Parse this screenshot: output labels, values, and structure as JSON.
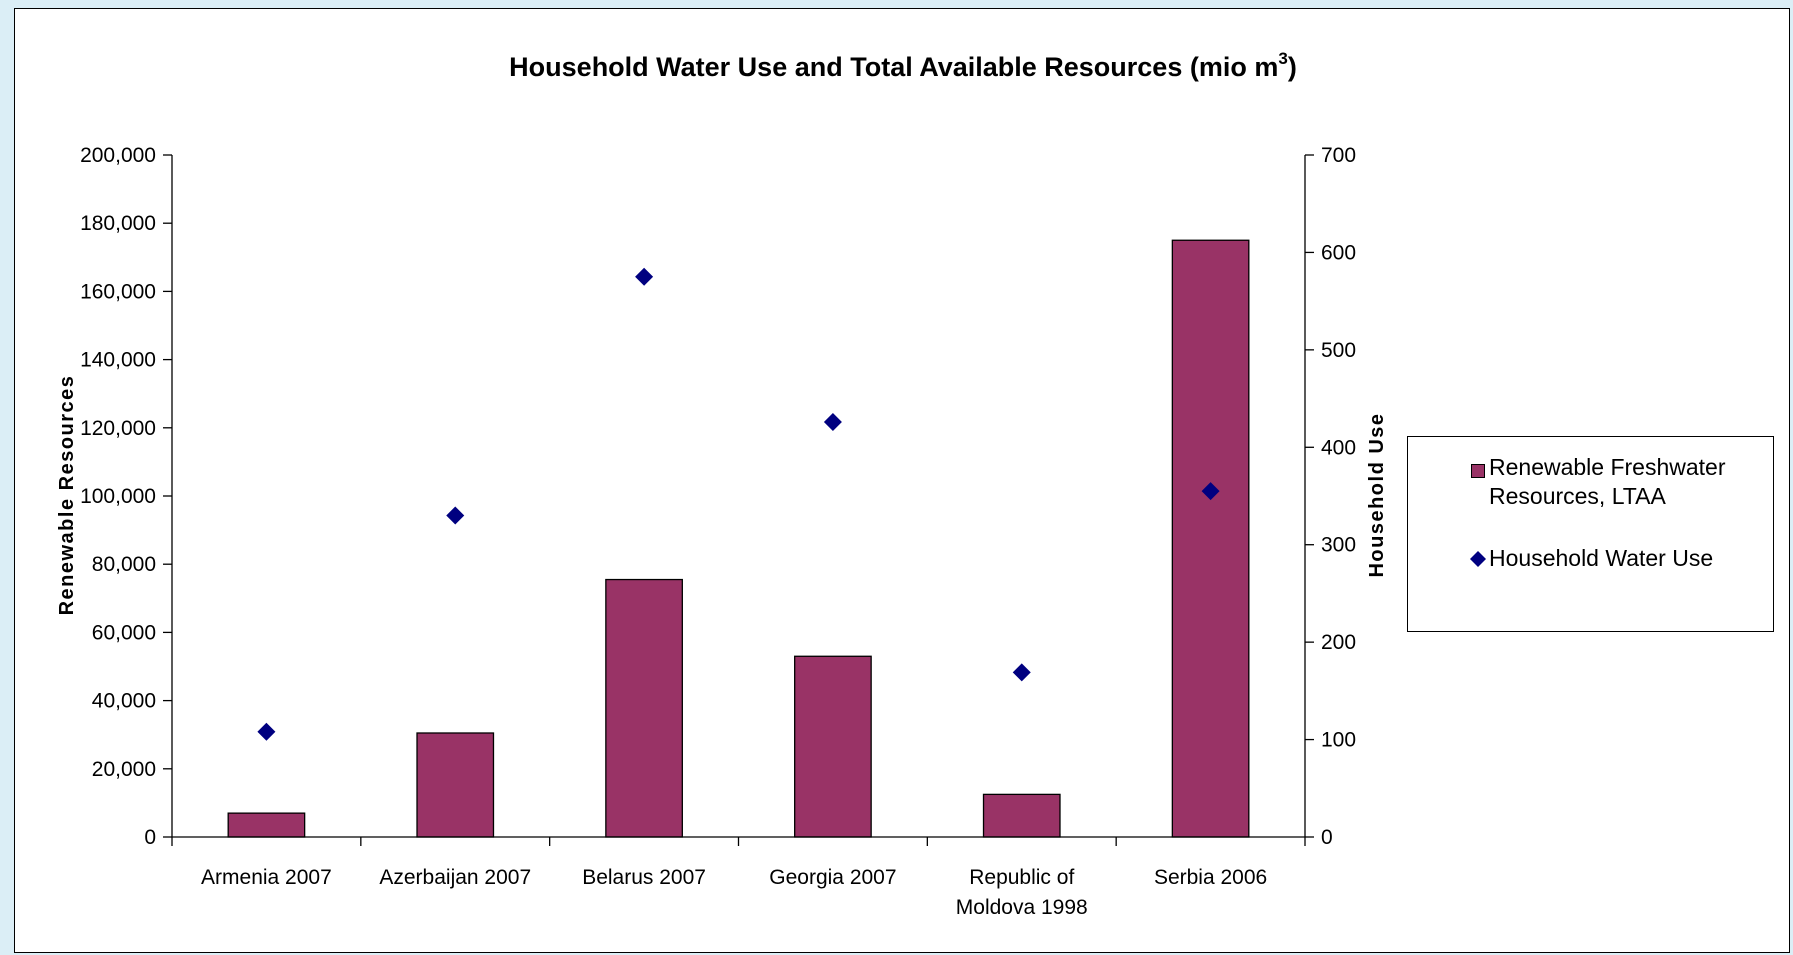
{
  "chart_data": {
    "type": "bar",
    "title": "Household Water Use and Total Available Resources (mio m³)",
    "title_main": "Household Water Use and Total Available Resources (mio m",
    "title_sup": "3",
    "title_end": ")",
    "categories": [
      [
        "Armenia 2007"
      ],
      [
        "Azerbaijan 2007"
      ],
      [
        "Belarus 2007"
      ],
      [
        "Georgia 2007"
      ],
      [
        "Republic of",
        "Moldova 1998"
      ],
      [
        "Serbia 2006"
      ]
    ],
    "series": [
      {
        "name": "Renewable Freshwater Resources, LTAA",
        "name_lines": [
          "Renewable Freshwater",
          "Resources, LTAA"
        ],
        "type": "bar",
        "axis": "left",
        "color": "#993366",
        "values": [
          7000,
          30500,
          75500,
          53000,
          12500,
          175000
        ]
      },
      {
        "name": "Household Water Use",
        "type": "scatter",
        "marker": "diamond",
        "axis": "right",
        "color": "#000080",
        "values": [
          108,
          330,
          575,
          426,
          169,
          355
        ]
      }
    ],
    "ylabel": "Renewable Resources",
    "y2label": "Household Use",
    "ylim": [
      0,
      200000
    ],
    "y2lim": [
      0,
      700
    ],
    "yticks": [
      "0",
      "20,000",
      "40,000",
      "60,000",
      "80,000",
      "100,000",
      "120,000",
      "140,000",
      "160,000",
      "180,000",
      "200,000"
    ],
    "y2ticks": [
      "0",
      "100",
      "200",
      "300",
      "400",
      "500",
      "600",
      "700"
    ],
    "grid": false,
    "legend_position": "right"
  }
}
